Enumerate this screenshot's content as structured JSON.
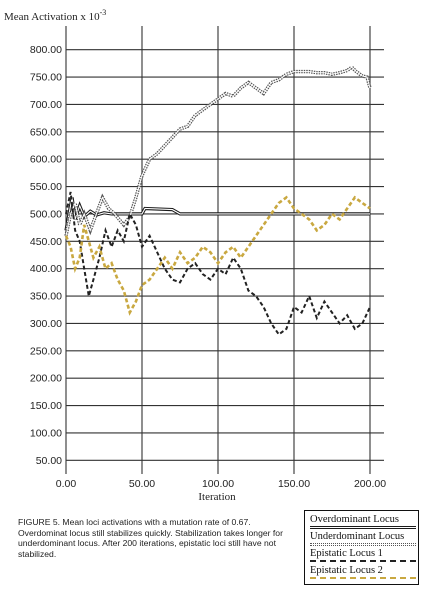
{
  "chart_data": {
    "type": "line",
    "ylabel": "Mean Activation x 10",
    "ylabel_exponent": "-3",
    "xlabel": "Iteration",
    "xlim": [
      0,
      200
    ],
    "ylim": [
      25,
      825
    ],
    "x_ticks": [
      "0.00",
      "50.00",
      "100.00",
      "150.00",
      "200.00"
    ],
    "y_ticks": [
      "50.00",
      "100.00",
      "150.00",
      "200.00",
      "250.00",
      "300.00",
      "350.00",
      "400.00",
      "450.00",
      "500.00",
      "550.00",
      "600.00",
      "650.00",
      "700.00",
      "750.00",
      "800.00"
    ],
    "grid": true,
    "legend_position": "bottom-right",
    "series": [
      {
        "name": "Overdominant Locus",
        "color": "#1a1a1a",
        "style": "double",
        "points": [
          [
            0,
            470
          ],
          [
            2,
            500
          ],
          [
            4,
            530
          ],
          [
            6,
            490
          ],
          [
            9,
            515
          ],
          [
            12,
            495
          ],
          [
            16,
            505
          ],
          [
            20,
            498
          ],
          [
            25,
            502
          ],
          [
            30,
            500
          ],
          [
            40,
            500
          ],
          [
            50,
            500
          ],
          [
            52,
            510
          ],
          [
            70,
            508
          ],
          [
            75,
            500
          ],
          [
            100,
            500
          ],
          [
            150,
            500
          ],
          [
            200,
            500
          ]
        ]
      },
      {
        "name": "Underdominant Locus",
        "color": "#555555",
        "style": "dotted-double",
        "points": [
          [
            0,
            460
          ],
          [
            3,
            500
          ],
          [
            6,
            520
          ],
          [
            9,
            480
          ],
          [
            12,
            500
          ],
          [
            16,
            470
          ],
          [
            20,
            500
          ],
          [
            24,
            530
          ],
          [
            28,
            510
          ],
          [
            32,
            500
          ],
          [
            38,
            480
          ],
          [
            42,
            495
          ],
          [
            46,
            530
          ],
          [
            50,
            570
          ],
          [
            55,
            600
          ],
          [
            60,
            610
          ],
          [
            65,
            625
          ],
          [
            70,
            640
          ],
          [
            75,
            655
          ],
          [
            80,
            660
          ],
          [
            85,
            680
          ],
          [
            90,
            690
          ],
          [
            95,
            700
          ],
          [
            100,
            710
          ],
          [
            105,
            720
          ],
          [
            110,
            715
          ],
          [
            115,
            730
          ],
          [
            120,
            740
          ],
          [
            125,
            730
          ],
          [
            130,
            720
          ],
          [
            135,
            740
          ],
          [
            140,
            745
          ],
          [
            145,
            755
          ],
          [
            150,
            760
          ],
          [
            155,
            760
          ],
          [
            160,
            760
          ],
          [
            165,
            758
          ],
          [
            170,
            758
          ],
          [
            175,
            755
          ],
          [
            180,
            758
          ],
          [
            185,
            762
          ],
          [
            188,
            768
          ],
          [
            191,
            760
          ],
          [
            195,
            752
          ],
          [
            198,
            750
          ],
          [
            200,
            730
          ]
        ]
      },
      {
        "name": "Epistatic Locus 1",
        "color": "#222222",
        "style": "dashed",
        "points": [
          [
            0,
            500
          ],
          [
            3,
            540
          ],
          [
            6,
            470
          ],
          [
            9,
            450
          ],
          [
            12,
            400
          ],
          [
            15,
            350
          ],
          [
            18,
            380
          ],
          [
            22,
            420
          ],
          [
            26,
            470
          ],
          [
            30,
            440
          ],
          [
            34,
            470
          ],
          [
            38,
            450
          ],
          [
            42,
            500
          ],
          [
            46,
            480
          ],
          [
            50,
            440
          ],
          [
            55,
            460
          ],
          [
            60,
            430
          ],
          [
            65,
            400
          ],
          [
            70,
            380
          ],
          [
            75,
            375
          ],
          [
            80,
            400
          ],
          [
            85,
            410
          ],
          [
            90,
            390
          ],
          [
            95,
            380
          ],
          [
            100,
            400
          ],
          [
            105,
            390
          ],
          [
            110,
            420
          ],
          [
            115,
            400
          ],
          [
            120,
            360
          ],
          [
            125,
            350
          ],
          [
            130,
            330
          ],
          [
            135,
            300
          ],
          [
            140,
            280
          ],
          [
            145,
            290
          ],
          [
            150,
            330
          ],
          [
            155,
            320
          ],
          [
            160,
            350
          ],
          [
            165,
            310
          ],
          [
            170,
            340
          ],
          [
            175,
            320
          ],
          [
            180,
            300
          ],
          [
            185,
            315
          ],
          [
            190,
            290
          ],
          [
            195,
            300
          ],
          [
            200,
            330
          ]
        ]
      },
      {
        "name": "Epistatic Locus 2",
        "color": "#c9a840",
        "style": "dashed",
        "points": [
          [
            0,
            460
          ],
          [
            3,
            440
          ],
          [
            6,
            400
          ],
          [
            9,
            420
          ],
          [
            12,
            480
          ],
          [
            15,
            450
          ],
          [
            18,
            420
          ],
          [
            22,
            440
          ],
          [
            26,
            400
          ],
          [
            30,
            410
          ],
          [
            34,
            380
          ],
          [
            38,
            360
          ],
          [
            42,
            320
          ],
          [
            46,
            340
          ],
          [
            50,
            370
          ],
          [
            55,
            380
          ],
          [
            60,
            400
          ],
          [
            65,
            420
          ],
          [
            70,
            400
          ],
          [
            75,
            430
          ],
          [
            80,
            410
          ],
          [
            85,
            420
          ],
          [
            90,
            440
          ],
          [
            95,
            430
          ],
          [
            100,
            410
          ],
          [
            105,
            430
          ],
          [
            110,
            440
          ],
          [
            115,
            420
          ],
          [
            120,
            440
          ],
          [
            125,
            460
          ],
          [
            130,
            480
          ],
          [
            135,
            500
          ],
          [
            140,
            520
          ],
          [
            145,
            530
          ],
          [
            150,
            510
          ],
          [
            155,
            500
          ],
          [
            160,
            490
          ],
          [
            165,
            470
          ],
          [
            170,
            480
          ],
          [
            175,
            500
          ],
          [
            180,
            490
          ],
          [
            185,
            510
          ],
          [
            190,
            530
          ],
          [
            195,
            520
          ],
          [
            200,
            510
          ]
        ]
      }
    ]
  },
  "caption": {
    "text": "FIGURE 5. Mean loci activations with a mutation rate of 0.67. Overdominat locus still stabilizes quickly. Stabilization takes longer for underdominant locus. After 200 iterations, epistatic loci still have not stabilized."
  }
}
